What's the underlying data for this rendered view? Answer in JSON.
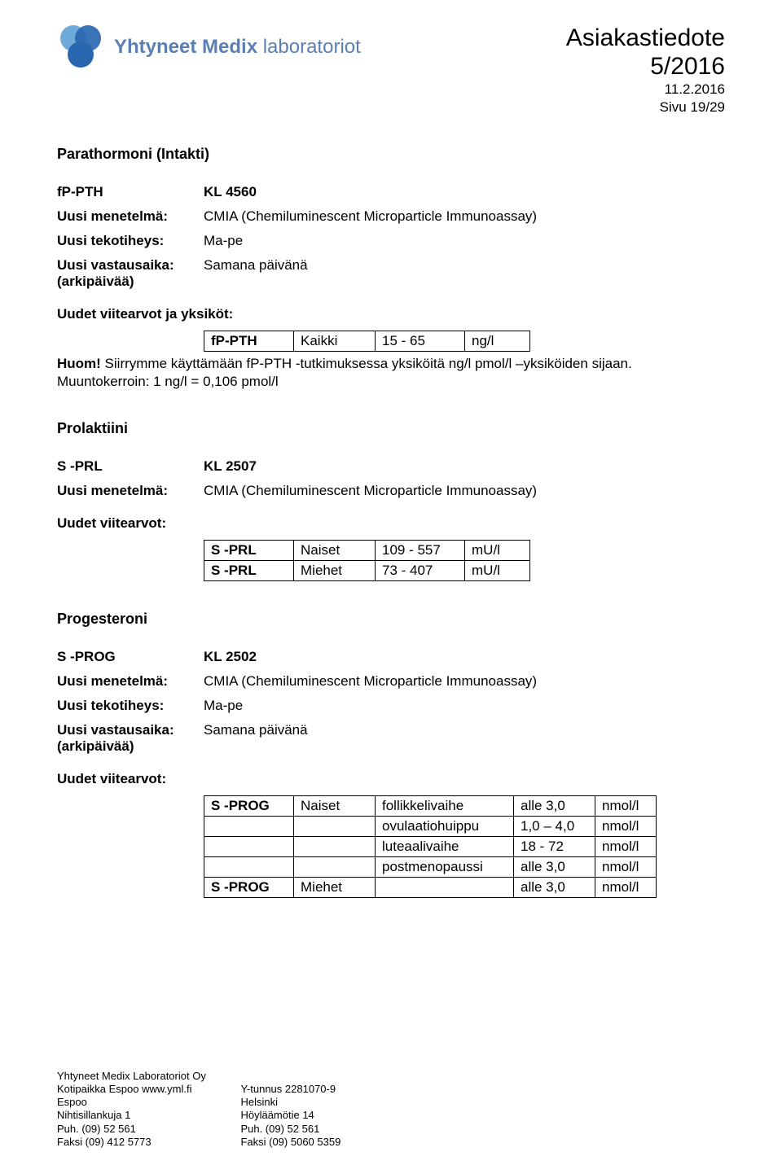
{
  "brand": {
    "name_main": "Yhtyneet Medix",
    "name_suffix": "laboratoriot"
  },
  "logo_colors": {
    "dark": "#2a67b1",
    "light": "#6da9d9"
  },
  "header": {
    "title": "Asiakastiedote",
    "issue": "5/2016",
    "date": "11.2.2016",
    "page": "Sivu 19/29"
  },
  "sections": [
    {
      "title": "Parathormoni (Intakti)",
      "code_label": "fP-PTH",
      "code_value": "KL 4560",
      "rows": [
        {
          "label": "Uusi menetelmä:",
          "value": "CMIA (Chemiluminescent Microparticle Immunoassay)"
        },
        {
          "label": "Uusi tekotiheys:",
          "value": "Ma-pe"
        },
        {
          "label": "Uusi vastausaika:\n(arkipäivää)",
          "value": "Samana päivänä"
        }
      ],
      "subhead": "Uudet viitearvot ja yksiköt:",
      "table": {
        "cols": 4,
        "widths": [
          "110",
          "100",
          "110",
          "80"
        ],
        "rows": [
          [
            "fP-PTH",
            "Kaikki",
            "15 - 65",
            "ng/l"
          ]
        ]
      },
      "note_prefix": "Huom!",
      "note_body": " Siirrymme käyttämään fP-PTH -tutkimuksessa yksiköitä ng/l pmol/l –yksiköiden sijaan. Muuntokerroin: 1 ng/l = 0,106 pmol/l"
    },
    {
      "title": "Prolaktiini",
      "code_label": "S -PRL",
      "code_value": "KL  2507",
      "rows": [
        {
          "label": "Uusi menetelmä:",
          "value": " CMIA (Chemiluminescent Microparticle Immunoassay)"
        }
      ],
      "subhead": "Uudet viitearvot:",
      "table": {
        "cols": 4,
        "rows": [
          [
            "S -PRL",
            "Naiset",
            "109 - 557",
            "mU/l"
          ],
          [
            "S -PRL",
            "Miehet",
            "73 - 407",
            "mU/l"
          ]
        ]
      }
    },
    {
      "title": "Progesteroni",
      "code_label": "S -PROG",
      "code_value": "KL  2502",
      "rows": [
        {
          "label": "Uusi menetelmä:",
          "value": "CMIA (Chemiluminescent Microparticle Immunoassay)"
        },
        {
          "label": "Uusi tekotiheys:",
          "value": "Ma-pe"
        },
        {
          "label": "Uusi vastausaika:\n(arkipäivää)",
          "value": "Samana päivänä"
        }
      ],
      "subhead": "Uudet viitearvot:",
      "table": {
        "cols": 5,
        "rows": [
          [
            "S -PROG",
            "Naiset",
            "follikkelivaihe",
            "alle 3,0",
            "nmol/l"
          ],
          [
            "",
            "",
            "ovulaatiohuippu",
            "1,0 – 4,0",
            "nmol/l"
          ],
          [
            "",
            "",
            "luteaalivaihe",
            "18 - 72",
            "nmol/l"
          ],
          [
            "",
            "",
            "postmenopaussi",
            "alle 3,0",
            "nmol/l"
          ],
          [
            "S -PROG",
            "Miehet",
            "",
            "alle 3,0",
            "nmol/l"
          ]
        ]
      }
    }
  ],
  "footer": {
    "line1": "Yhtyneet Medix Laboratoriot Oy",
    "col1": "Kotipaikka Espoo   www.yml.fi\nEspoo\nNihtisillankuja 1\nPuh. (09) 52 561\nFaksi (09) 412 5773",
    "col2": "Y-tunnus 2281070-9\nHelsinki\nHöyläämötie 14\nPuh. (09) 52 561\nFaksi (09) 5060 5359"
  }
}
